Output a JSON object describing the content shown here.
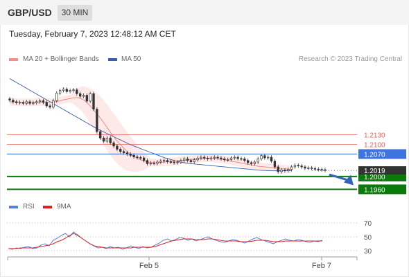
{
  "header": {
    "symbol": "GBP/USD",
    "timeframe": "30 MIN"
  },
  "timestamp": "Tuesday, February 7, 2023 12:48:12 AM CET",
  "legend": {
    "ma20": {
      "label": "MA 20 + Bollinger Bands",
      "color": "#f4908a"
    },
    "ma50": {
      "label": "MA 50",
      "color": "#3a5fa8"
    }
  },
  "credit": "Research © 2023 Trading Central",
  "rsi_legend": {
    "rsi": {
      "label": "RSI",
      "color": "#5a7fd6"
    },
    "ma9": {
      "label": "9MA",
      "color": "#e02020"
    }
  },
  "chart_data": [
    {
      "type": "candlestick",
      "ylim": [
        1.1935,
        1.2345
      ],
      "x_ticks": [
        "Feb 5",
        "Feb 7"
      ],
      "current_price": "1.2019",
      "levels": [
        {
          "label": "1.2130",
          "value": 1.213,
          "kind": "resistance",
          "color": "#e8635a"
        },
        {
          "label": "1.2100",
          "value": 1.21,
          "kind": "resistance",
          "color": "#e8635a"
        },
        {
          "label": "1.2070",
          "value": 1.207,
          "kind": "pivot",
          "color": "#3f74e0"
        },
        {
          "label": "1.2000",
          "value": 1.2,
          "kind": "target",
          "color": "#0b7a0b"
        },
        {
          "label": "1.1960",
          "value": 1.196,
          "kind": "target",
          "color": "#0b7a0b"
        }
      ],
      "close": [
        1.2238,
        1.2233,
        1.223,
        1.2231,
        1.2228,
        1.2233,
        1.2228,
        1.223,
        1.2233,
        1.2236,
        1.2231,
        1.222,
        1.2216,
        1.2236,
        1.226,
        1.2268,
        1.2272,
        1.2265,
        1.2268,
        1.227,
        1.2258,
        1.225,
        1.2253,
        1.2235,
        1.2258,
        1.221,
        1.214,
        1.212,
        1.211,
        1.212,
        1.2105,
        1.2095,
        1.2085,
        1.2078,
        1.2074,
        1.207,
        1.2066,
        1.2061,
        1.2059,
        1.2058,
        1.205,
        1.204,
        1.2042,
        1.2041,
        1.2045,
        1.2048,
        1.205,
        1.2046,
        1.2045,
        1.2043,
        1.2045,
        1.205,
        1.2055,
        1.205,
        1.2046,
        1.2052,
        1.2057,
        1.206,
        1.2057,
        1.2055,
        1.2058,
        1.206,
        1.2058,
        1.2055,
        1.2052,
        1.2053,
        1.2058,
        1.206,
        1.2056,
        1.2055,
        1.205,
        1.2043,
        1.204,
        1.2045,
        1.2055,
        1.2065,
        1.2058,
        1.206,
        1.2048,
        1.203,
        1.2015,
        1.202,
        1.2018,
        1.2022,
        1.203,
        1.2035,
        1.2033,
        1.203,
        1.2026,
        1.2027,
        1.2025,
        1.2023,
        1.2022,
        1.2021,
        1.2019
      ],
      "ma20": [
        1.2233,
        1.2232,
        1.2232,
        1.2231,
        1.2231,
        1.2231,
        1.2231,
        1.2231,
        1.2232,
        1.2232,
        1.2232,
        1.2232,
        1.2231,
        1.2232,
        1.2234,
        1.2236,
        1.2239,
        1.2241,
        1.2243,
        1.2245,
        1.2246,
        1.2244,
        1.2239,
        1.223,
        1.222,
        1.2208,
        1.2195,
        1.2182,
        1.2168,
        1.2153,
        1.2138,
        1.2124,
        1.2111,
        1.2099,
        1.2088,
        1.2078,
        1.207,
        1.2063,
        1.2057,
        1.2052,
        1.2048,
        1.2045,
        1.2044,
        1.2043,
        1.2043,
        1.2044,
        1.2045,
        1.2046,
        1.2047,
        1.2048,
        1.2049,
        1.205,
        1.2051,
        1.2052,
        1.2053,
        1.2054,
        1.2055,
        1.2056,
        1.2057,
        1.2057,
        1.2057,
        1.2056,
        1.2055,
        1.2054,
        1.2052,
        1.205,
        1.2048,
        1.2046,
        1.2044,
        1.2042,
        1.204,
        1.2038,
        1.2036,
        1.2034,
        1.2032,
        1.2031,
        1.203,
        1.2029,
        1.2028,
        1.2027,
        1.2026,
        1.2025,
        1.2024,
        1.2023,
        1.2022
      ],
      "ma50": [
        1.2305,
        1.2299,
        1.2293,
        1.2287,
        1.2281,
        1.2275,
        1.2269,
        1.2263,
        1.2257,
        1.2251,
        1.2245,
        1.2239,
        1.2233,
        1.2227,
        1.2221,
        1.2215,
        1.2209,
        1.2203,
        1.2197,
        1.2191,
        1.2185,
        1.2179,
        1.2173,
        1.2167,
        1.2161,
        1.2155,
        1.2149,
        1.2144,
        1.2139,
        1.2134,
        1.2129,
        1.2124,
        1.2119,
        1.2114,
        1.2109,
        1.2104,
        1.2099,
        1.2095,
        1.2091,
        1.2087,
        1.2083,
        1.2079,
        1.2075,
        1.2071,
        1.2067,
        1.2063,
        1.2059,
        1.2056,
        1.2053,
        1.205,
        1.2047,
        1.2045,
        1.2043,
        1.2041,
        1.204,
        1.2039,
        1.2038,
        1.2037,
        1.2036,
        1.2035,
        1.2034,
        1.2033,
        1.2032,
        1.2031,
        1.203,
        1.2029,
        1.2028,
        1.2027,
        1.2026,
        1.2025,
        1.2024,
        1.2023,
        1.2022,
        1.2021,
        1.202,
        1.2019,
        1.2019,
        1.2018,
        1.2018,
        1.2018,
        1.2018,
        1.2018,
        1.2018,
        1.2018,
        1.2018
      ]
    },
    {
      "type": "line",
      "name": "RSI",
      "ylim": [
        20,
        80
      ],
      "y_ticks": [
        70,
        50,
        30
      ],
      "rsi": [
        33,
        32,
        34,
        33,
        35,
        36,
        33,
        34,
        38,
        40,
        37,
        45,
        48,
        52,
        55,
        50,
        57,
        53,
        48,
        44,
        40,
        37,
        34,
        35,
        33,
        36,
        34,
        35,
        32,
        34,
        37,
        35,
        33,
        36,
        34,
        35,
        38,
        41,
        45,
        47,
        44,
        46,
        49,
        48,
        45,
        47,
        44,
        46,
        48,
        50,
        47,
        45,
        43,
        42,
        44,
        46,
        45,
        43,
        41,
        44,
        47,
        49,
        46,
        44,
        42,
        40,
        43,
        45,
        47,
        45,
        44,
        46,
        45,
        43,
        42,
        44,
        43,
        45
      ],
      "ma9": [
        33,
        33,
        33,
        34,
        34,
        34,
        34,
        35,
        36,
        37,
        38,
        40,
        43,
        45,
        48,
        52,
        55,
        52,
        48,
        44,
        40,
        37,
        36,
        35,
        34,
        34,
        34,
        34,
        34,
        34,
        34,
        35,
        35,
        35,
        35,
        35,
        36,
        38,
        40,
        42,
        44,
        45,
        46,
        47,
        47,
        47,
        46,
        46,
        46,
        47,
        47,
        46,
        45,
        44,
        44,
        44,
        44,
        43,
        43,
        43,
        44,
        45,
        45,
        45,
        44,
        43,
        43,
        43,
        44,
        44,
        44,
        44,
        44,
        44,
        44,
        44,
        44,
        44
      ]
    }
  ]
}
